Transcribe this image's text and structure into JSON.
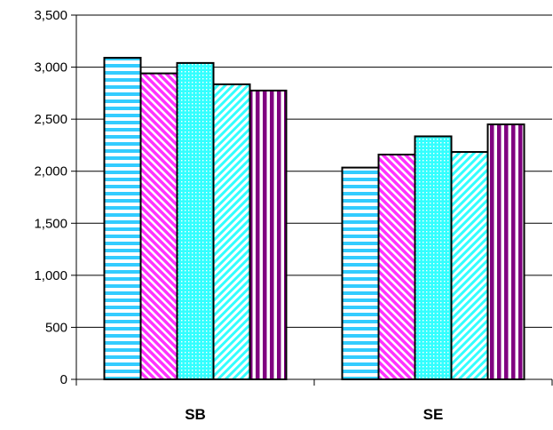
{
  "chart_data": {
    "type": "bar",
    "title": "",
    "xlabel": "",
    "ylabel": "",
    "categories": [
      "SB",
      "SE"
    ],
    "ylim": [
      0,
      3500
    ],
    "yticks": [
      0,
      500,
      1000,
      1500,
      2000,
      2500,
      3000,
      3500
    ],
    "ytick_labels": [
      "0",
      "500",
      "1,000",
      "1,500",
      "2,000",
      "2,500",
      "3,000",
      "3,500"
    ],
    "grid": "horizontal",
    "legend": "none",
    "series": [
      {
        "values": [
          3090,
          2035
        ],
        "color": "#33CCFF",
        "pattern": "horizontal-stripes"
      },
      {
        "values": [
          2940,
          2160
        ],
        "color": "#FF33FF",
        "pattern": "diagonal-stripes"
      },
      {
        "values": [
          3040,
          2335
        ],
        "color": "#33FFFF",
        "pattern": "dots"
      },
      {
        "values": [
          2835,
          2185
        ],
        "color": "#33FFFF",
        "pattern": "light-diagonal-stripes"
      },
      {
        "values": [
          2775,
          2450
        ],
        "color": "#800080",
        "pattern": "vertical-stripes"
      }
    ]
  }
}
